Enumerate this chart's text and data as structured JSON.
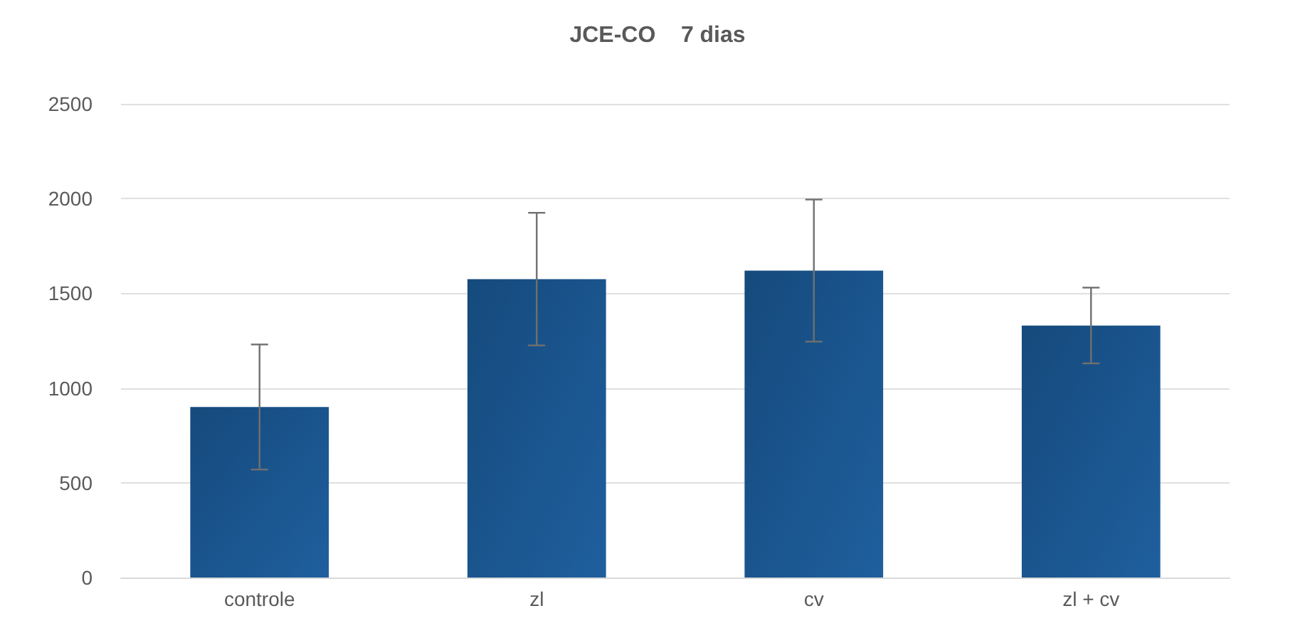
{
  "chart_data": {
    "type": "bar",
    "title": "JCE-CO    7 dias",
    "categories": [
      "controle",
      "zl",
      "cv",
      "zl + cv"
    ],
    "values": [
      900,
      1575,
      1620,
      1330
    ],
    "errors": [
      330,
      350,
      375,
      200
    ],
    "color": "#1f5f9e",
    "ylim": [
      0,
      2500
    ],
    "yticks": [
      0,
      500,
      1000,
      1500,
      2000,
      2500
    ],
    "grid": "y"
  }
}
